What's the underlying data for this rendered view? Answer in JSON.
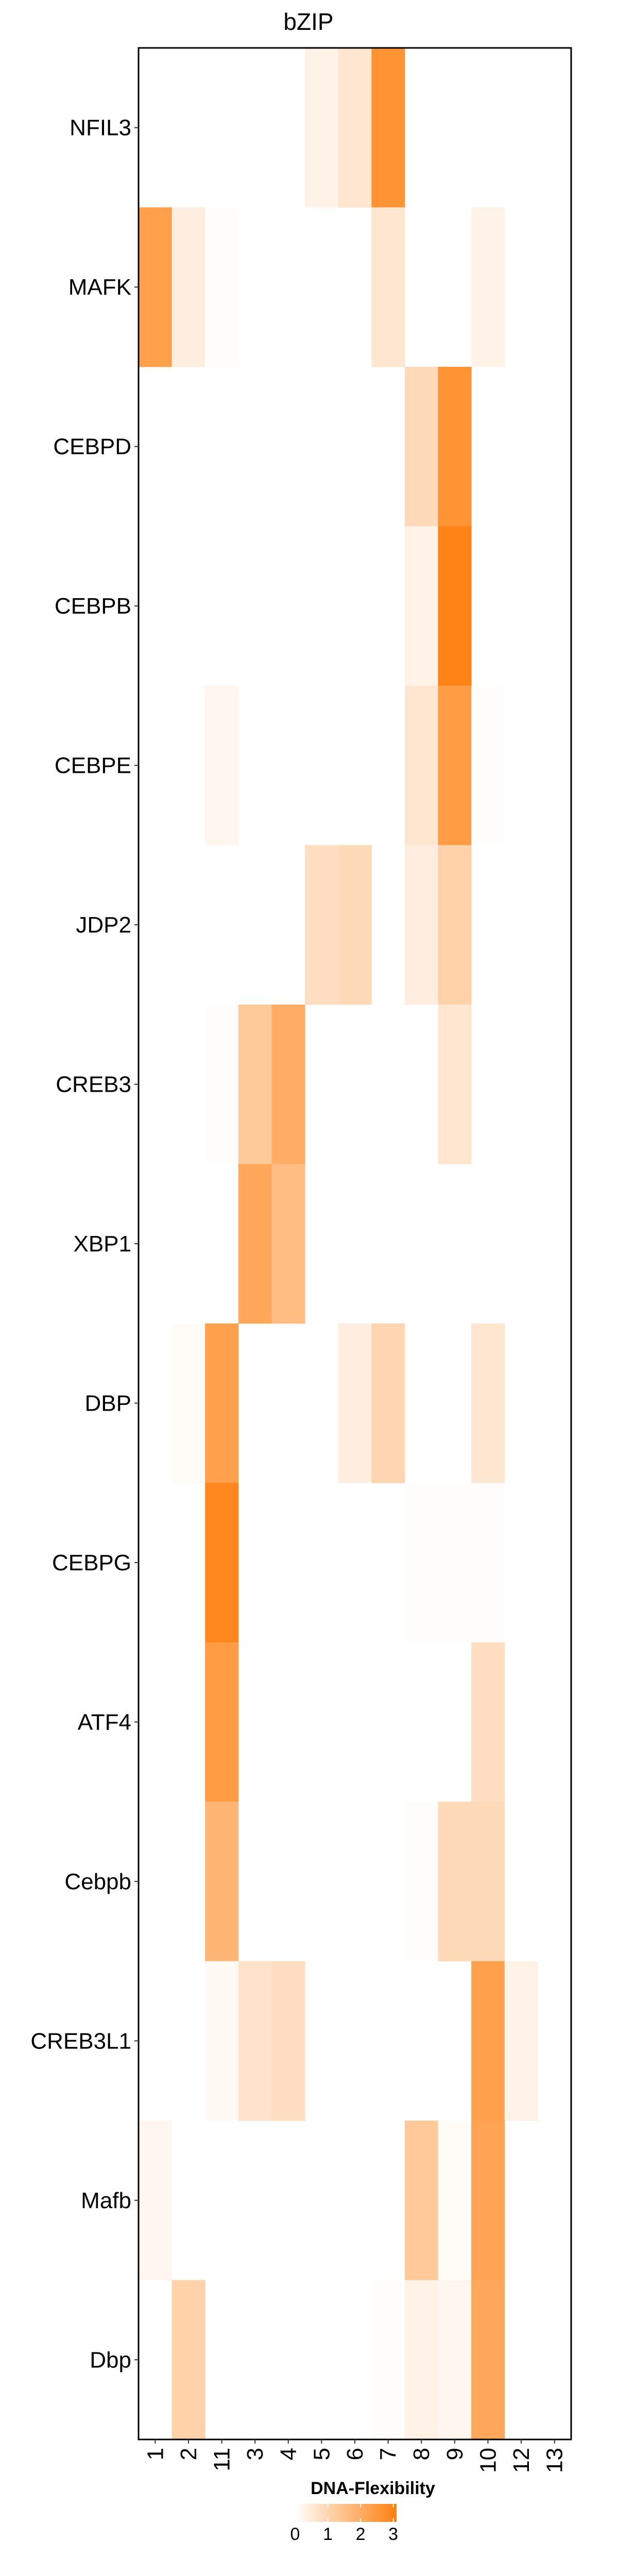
{
  "chart_data": {
    "type": "heatmap",
    "title": "bZIP",
    "columns": [
      "1",
      "2",
      "11",
      "3",
      "4",
      "5",
      "6",
      "7",
      "8",
      "9",
      "10",
      "12",
      "13"
    ],
    "rows": [
      "NFIL3",
      "MAFK",
      "CEBPD",
      "CEBPB",
      "CEBPE",
      "JDP2",
      "CREB3",
      "XBP1",
      "DBP",
      "CEBPG",
      "ATF4",
      "Cebpb",
      "CREB3L1",
      "Mafb",
      "Dbp"
    ],
    "values": [
      [
        0,
        0,
        0,
        0,
        0,
        0.3,
        0.6,
        2.6,
        0,
        0,
        0,
        0,
        0
      ],
      [
        2.3,
        0.4,
        0.05,
        0,
        0,
        0,
        0,
        0.6,
        0,
        0,
        0.3,
        0,
        0
      ],
      [
        0,
        0,
        0,
        0,
        0,
        0,
        0,
        0,
        0.9,
        2.6,
        0,
        0,
        0
      ],
      [
        0,
        0,
        0,
        0,
        0,
        0,
        0,
        0,
        0.3,
        3.0,
        0,
        0,
        0
      ],
      [
        0,
        0,
        0.2,
        0,
        0,
        0,
        0,
        0,
        0.6,
        2.4,
        0.05,
        0,
        0
      ],
      [
        0,
        0,
        0,
        0,
        0,
        0.8,
        0.9,
        0,
        0.4,
        1.1,
        0,
        0,
        0
      ],
      [
        0,
        0,
        0.05,
        1.3,
        2.0,
        0,
        0,
        0,
        0,
        0.6,
        0,
        0,
        0
      ],
      [
        0,
        0,
        0,
        2.1,
        1.6,
        0,
        0,
        0,
        0,
        0,
        0,
        0,
        0
      ],
      [
        0,
        0.1,
        2.3,
        0,
        0,
        0,
        0.4,
        1.0,
        0,
        0,
        0.6,
        0,
        0
      ],
      [
        0,
        0,
        2.9,
        0,
        0,
        0,
        0,
        0,
        0.05,
        0.05,
        0.05,
        0,
        0
      ],
      [
        0,
        0,
        2.4,
        0,
        0,
        0,
        0,
        0,
        0,
        0,
        0.8,
        0,
        0
      ],
      [
        0,
        0,
        1.8,
        0,
        0,
        0,
        0,
        0,
        0.05,
        0.9,
        0.9,
        0,
        0
      ],
      [
        0,
        0,
        0.15,
        0.7,
        0.8,
        0,
        0,
        0,
        0,
        0,
        2.3,
        0.3,
        0
      ],
      [
        0.2,
        0,
        0,
        0,
        0,
        0,
        0,
        0,
        1.3,
        0.1,
        2.2,
        0,
        0
      ],
      [
        0,
        1.1,
        0,
        0,
        0,
        0,
        0,
        0.05,
        0.3,
        0.2,
        2.1,
        0,
        0
      ]
    ],
    "colorbar": {
      "title": "DNA-Flexibility",
      "ticks": [
        0,
        1,
        2,
        3
      ],
      "range": [
        0,
        3.1
      ],
      "low_color": "#ffffff",
      "high_color": "#ff7f0e"
    }
  }
}
